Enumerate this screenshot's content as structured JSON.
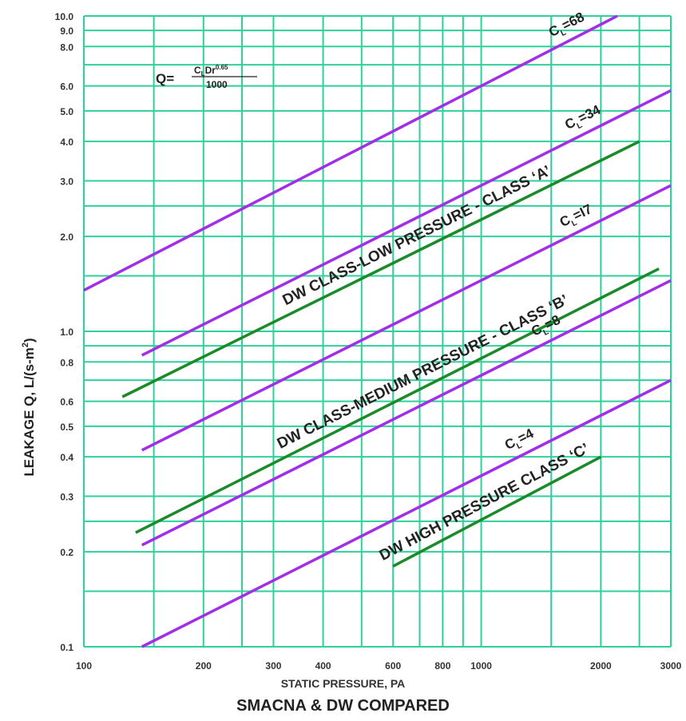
{
  "chart_data": {
    "type": "line",
    "title": "SMACNA & DW COMPARED",
    "xlabel": "STATIC PRESSURE, PA",
    "ylabel": "LEAKAGE Q, L/(s-m",
    "ylabel_sup": "2",
    "ylabel_tail": ")",
    "x_scale": "log",
    "y_scale": "log",
    "xlim": [
      100,
      3000
    ],
    "ylim": [
      0.1,
      10
    ],
    "grid": true,
    "x_ticks": [
      {
        "value": 100,
        "label": "100"
      },
      {
        "value": 200,
        "label": "200"
      },
      {
        "value": 300,
        "label": "300"
      },
      {
        "value": 400,
        "label": "400"
      },
      {
        "value": 600,
        "label": "600"
      },
      {
        "value": 800,
        "label": "800"
      },
      {
        "value": 1000,
        "label": "1000"
      },
      {
        "value": 2000,
        "label": "2000"
      },
      {
        "value": 3000,
        "label": "3000"
      }
    ],
    "y_ticks": [
      {
        "value": 0.1,
        "label": "0.1"
      },
      {
        "value": 0.2,
        "label": "0.2"
      },
      {
        "value": 0.3,
        "label": "0.3"
      },
      {
        "value": 0.4,
        "label": "0.4"
      },
      {
        "value": 0.5,
        "label": "0.5"
      },
      {
        "value": 0.6,
        "label": "0.6"
      },
      {
        "value": 0.8,
        "label": "0.8"
      },
      {
        "value": 1.0,
        "label": "1.0"
      },
      {
        "value": 2.0,
        "label": "2.0"
      },
      {
        "value": 3.0,
        "label": "3.0"
      },
      {
        "value": 4.0,
        "label": "4.0"
      },
      {
        "value": 5.0,
        "label": "5.0"
      },
      {
        "value": 6.0,
        "label": "6.0"
      },
      {
        "value": 8.0,
        "label": "8.0"
      },
      {
        "value": 9.0,
        "label": "9.0"
      },
      {
        "value": 10.0,
        "label": "10.0"
      }
    ],
    "formula": {
      "lhs": "Q=",
      "numerator": "C",
      "num_sub": "L",
      "num_mid": "Dr",
      "num_sup": "0.65",
      "denominator": "1000"
    },
    "series": [
      {
        "name": "CL=68",
        "label_main": "C",
        "label_sub": "L",
        "label_tail": "=68",
        "color": "#a12ee8",
        "x": [
          100,
          2200
        ],
        "y": [
          1.35,
          10.0
        ]
      },
      {
        "name": "CL=34",
        "label_main": "C",
        "label_sub": "L",
        "label_tail": "=34",
        "color": "#a12ee8",
        "x": [
          140,
          3000
        ],
        "y": [
          0.84,
          5.8
        ]
      },
      {
        "name": "CL=17",
        "label_main": "C",
        "label_sub": "L",
        "label_tail": "=I7",
        "color": "#a12ee8",
        "x": [
          140,
          3000
        ],
        "y": [
          0.42,
          2.9
        ]
      },
      {
        "name": "CL=8",
        "label_main": "C",
        "label_sub": "L",
        "label_tail": "=8",
        "color": "#a12ee8",
        "x": [
          140,
          3000
        ],
        "y": [
          0.21,
          1.45
        ]
      },
      {
        "name": "CL=4",
        "label_main": "C",
        "label_sub": "L",
        "label_tail": "=4",
        "color": "#a12ee8",
        "x": [
          140,
          3000
        ],
        "y": [
          0.1,
          0.7
        ]
      },
      {
        "name": "DW CLASS-LOW PRESSURE - CLASS 'A'",
        "label_main": "DW CLASS-LOW PRESSURE - CLASS ‘A’",
        "color": "#1a8a2a",
        "x": [
          125,
          2500
        ],
        "y": [
          0.62,
          4.0
        ]
      },
      {
        "name": "DW CLASS-MEDIUM PRESSURE - CLASS 'B'",
        "label_main": "DW CLASS-MEDIUM PRESSURE - CLASS ‘B’",
        "color": "#1a8a2a",
        "x": [
          135,
          2800
        ],
        "y": [
          0.23,
          1.58
        ]
      },
      {
        "name": "DW HIGH PRESSURE CLASS 'C'",
        "label_main": "DW HIGH PRESSURE CLASS ‘C’",
        "color": "#1a8a2a",
        "x": [
          600,
          2000
        ],
        "y": [
          0.18,
          0.4
        ]
      }
    ]
  },
  "colors": {
    "grid": "#2ed19a",
    "purple": "#a12ee8",
    "green": "#1a8a2a"
  }
}
